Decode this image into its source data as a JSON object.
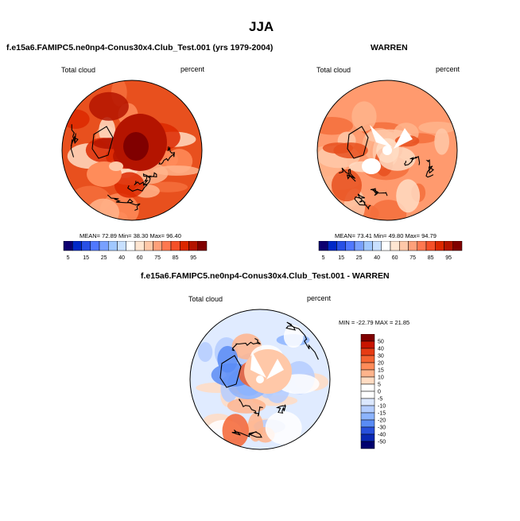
{
  "page": {
    "title": "JJA"
  },
  "chart_data": [
    {
      "type": "polar-contour-map",
      "id": "model",
      "panel_title": "f.e15a6.FAMIPC5.ne0np4-Conus30x4.Club_Test.001 (yrs 1979-2004)",
      "variable": "Total cloud",
      "units": "percent",
      "stats": {
        "mean_label": "MEAN=",
        "mean": "72.89",
        "min_label": "Min=",
        "min": "38.30",
        "max_label": "Max=",
        "max": "96.40"
      },
      "colorbar": {
        "orientation": "horizontal",
        "levels": [
          5,
          10,
          15,
          20,
          25,
          30,
          40,
          50,
          60,
          70,
          75,
          80,
          85,
          90,
          95
        ],
        "tick_labels": [
          "5",
          "15",
          "25",
          "40",
          "60",
          "75",
          "85",
          "95"
        ],
        "colors": [
          "#0d0070",
          "#0028c8",
          "#2850e6",
          "#5078ff",
          "#78a0ff",
          "#a0c8ff",
          "#c8e0ff",
          "#ffffff",
          "#ffe6d2",
          "#ffc8a8",
          "#ffa07a",
          "#ff7850",
          "#f55028",
          "#dc2800",
          "#b41400",
          "#800000"
        ]
      }
    },
    {
      "type": "polar-contour-map",
      "id": "obs",
      "panel_title": "WARREN",
      "variable": "Total cloud",
      "units": "percent",
      "stats": {
        "mean_label": "MEAN=",
        "mean": "73.41",
        "min_label": "Min=",
        "min": "49.80",
        "max_label": "Max=",
        "max": "94.79"
      },
      "colorbar": {
        "orientation": "horizontal",
        "levels": [
          5,
          10,
          15,
          20,
          25,
          30,
          40,
          50,
          60,
          70,
          75,
          80,
          85,
          90,
          95
        ],
        "tick_labels": [
          "5",
          "15",
          "25",
          "40",
          "60",
          "75",
          "85",
          "95"
        ],
        "colors": [
          "#0d0070",
          "#0028c8",
          "#2850e6",
          "#5078ff",
          "#78a0ff",
          "#a0c8ff",
          "#c8e0ff",
          "#ffffff",
          "#ffe6d2",
          "#ffc8a8",
          "#ffa07a",
          "#ff7850",
          "#f55028",
          "#dc2800",
          "#b41400",
          "#800000"
        ]
      }
    },
    {
      "type": "polar-contour-map",
      "id": "diff",
      "panel_title": "f.e15a6.FAMIPC5.ne0np4-Conus30x4.Club_Test.001 - WARREN",
      "variable": "Total cloud",
      "units": "percent",
      "stats": {
        "text": "MIN = -22.79 MAX =  21.85"
      },
      "colorbar": {
        "orientation": "vertical",
        "tick_labels": [
          "50",
          "40",
          "30",
          "20",
          "15",
          "10",
          "5",
          "0",
          "-5",
          "-10",
          "-15",
          "-20",
          "-30",
          "-40",
          "-50"
        ],
        "colors": [
          "#800000",
          "#c81400",
          "#e63c14",
          "#f56432",
          "#ff8c5a",
          "#ffb48c",
          "#ffdcc3",
          "#ffffff",
          "#ffffff",
          "#dce8ff",
          "#b4cdff",
          "#8cb4ff",
          "#5a8cf5",
          "#2850dc",
          "#0a28b4",
          "#00006e"
        ]
      }
    }
  ]
}
